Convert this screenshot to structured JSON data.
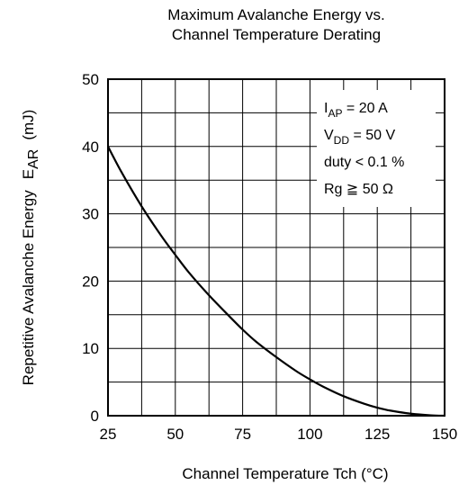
{
  "chart_data": {
    "type": "line",
    "title_lines": [
      "Maximum Avalanche Energy vs.",
      "Channel Temperature Derating"
    ],
    "xlabel": "Channel Temperature   Tch  (°C)",
    "ylabel": {
      "text": "Repetitive Avalanche Energy",
      "symbol_main": "E",
      "symbol_sub": "AR",
      "unit": "(mJ)"
    },
    "xlim": [
      25,
      150
    ],
    "ylim": [
      0,
      50
    ],
    "x_ticks": [
      25,
      50,
      75,
      100,
      125,
      150
    ],
    "y_ticks": [
      0,
      10,
      20,
      30,
      40,
      50
    ],
    "x_minor_step": 12.5,
    "y_minor_step": 5,
    "grid": true,
    "conditions": [
      {
        "main": "I",
        "sub": "AP",
        "rest": " = 20 A"
      },
      {
        "main": "V",
        "sub": "DD",
        "rest": " = 50 V"
      },
      {
        "main": "duty < 0.1 %",
        "sub": "",
        "rest": ""
      },
      {
        "main": "Rg ≧ 50 Ω",
        "sub": "",
        "rest": ""
      }
    ],
    "series": [
      {
        "x": [
          25,
          30,
          37.5,
          45,
          50,
          55,
          62.5,
          70,
          75,
          80,
          87.5,
          95,
          100,
          105,
          112.5,
          120,
          125,
          130,
          137.5,
          145,
          150
        ],
        "y": [
          40,
          36.2,
          31.1,
          26.6,
          23.9,
          21.3,
          17.9,
          14.8,
          12.8,
          11.0,
          8.7,
          6.6,
          5.4,
          4.3,
          2.9,
          1.8,
          1.2,
          0.75,
          0.3,
          0.06,
          0
        ]
      }
    ]
  }
}
